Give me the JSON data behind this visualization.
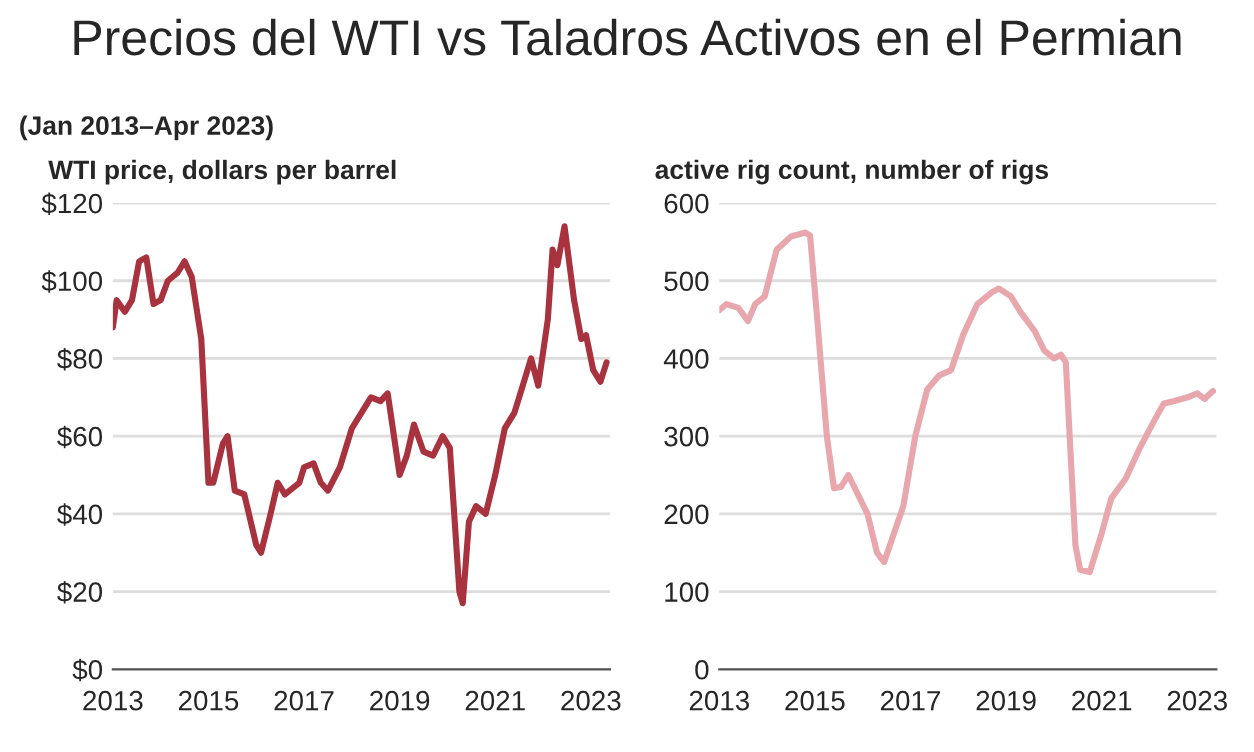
{
  "chart_data": [
    {
      "type": "line",
      "title": "Precios del WTI vs Taladros Activos en el Permian",
      "subtitle": "(Jan 2013–Apr 2023)",
      "ylabel": "WTI price, dollars per barrel",
      "series": [
        {
          "color": "#a8323e",
          "x": [
            2013.0,
            2013.08,
            2013.25,
            2013.4,
            2013.55,
            2013.7,
            2013.85,
            2014.0,
            2014.15,
            2014.35,
            2014.5,
            2014.65,
            2014.85,
            2015.0,
            2015.1,
            2015.3,
            2015.4,
            2015.55,
            2015.75,
            2016.0,
            2016.1,
            2016.3,
            2016.45,
            2016.6,
            2016.9,
            2017.0,
            2017.2,
            2017.35,
            2017.5,
            2017.75,
            2018.0,
            2018.2,
            2018.4,
            2018.6,
            2018.75,
            2019.0,
            2019.15,
            2019.3,
            2019.5,
            2019.7,
            2019.9,
            2020.05,
            2020.25,
            2020.32,
            2020.45,
            2020.6,
            2020.8,
            2021.0,
            2021.2,
            2021.4,
            2021.55,
            2021.75,
            2021.9,
            2022.1,
            2022.2,
            2022.3,
            2022.45,
            2022.65,
            2022.8,
            2022.9,
            2023.05,
            2023.2,
            2023.33
          ],
          "values": [
            88,
            95,
            92,
            95,
            105,
            106,
            94,
            95,
            100,
            102,
            105,
            101,
            85,
            48,
            48,
            58,
            60,
            46,
            45,
            32,
            30,
            40,
            48,
            45,
            48,
            52,
            53,
            48,
            46,
            52,
            62,
            66,
            70,
            69,
            71,
            50,
            55,
            63,
            56,
            55,
            60,
            57,
            20,
            17,
            38,
            42,
            40,
            50,
            62,
            66,
            72,
            80,
            73,
            90,
            108,
            104,
            114,
            95,
            85,
            86,
            77,
            74,
            79
          ]
        }
      ],
      "xlim": [
        2013,
        2023.4
      ],
      "xticks": [
        2013,
        2015,
        2017,
        2019,
        2021,
        2023
      ],
      "ylim": [
        0,
        120
      ],
      "yticks": [
        {
          "value": 0,
          "label": "$0"
        },
        {
          "value": 20,
          "label": "$20"
        },
        {
          "value": 40,
          "label": "$40"
        },
        {
          "value": 60,
          "label": "$60"
        },
        {
          "value": 80,
          "label": "$80"
        },
        {
          "value": 100,
          "label": "$100"
        },
        {
          "value": 120,
          "label": "$120"
        }
      ],
      "grid": "y",
      "line_style": "solid"
    },
    {
      "type": "line",
      "ylabel": "active rig count, number of rigs",
      "series": [
        {
          "color": "#e8a6ad",
          "x": [
            2013.0,
            2013.15,
            2013.4,
            2013.6,
            2013.75,
            2013.95,
            2014.2,
            2014.5,
            2014.8,
            2014.9,
            2015.05,
            2015.25,
            2015.4,
            2015.55,
            2015.7,
            2015.9,
            2016.1,
            2016.3,
            2016.45,
            2016.6,
            2016.85,
            2017.1,
            2017.35,
            2017.6,
            2017.85,
            2018.1,
            2018.4,
            2018.7,
            2018.85,
            2019.1,
            2019.3,
            2019.6,
            2019.8,
            2020.0,
            2020.15,
            2020.25,
            2020.45,
            2020.55,
            2020.75,
            2021.0,
            2021.2,
            2021.5,
            2021.8,
            2022.1,
            2022.3,
            2022.5,
            2022.8,
            2023.0,
            2023.15,
            2023.33
          ],
          "values": [
            462,
            470,
            465,
            448,
            470,
            480,
            540,
            557,
            562,
            558,
            450,
            300,
            233,
            235,
            250,
            225,
            200,
            150,
            138,
            165,
            210,
            300,
            360,
            378,
            385,
            430,
            470,
            485,
            490,
            480,
            460,
            435,
            410,
            400,
            405,
            395,
            160,
            128,
            125,
            175,
            220,
            245,
            285,
            320,
            342,
            345,
            350,
            355,
            348,
            358
          ]
        }
      ],
      "xlim": [
        2013,
        2023.4
      ],
      "xticks": [
        2013,
        2015,
        2017,
        2019,
        2021,
        2023
      ],
      "ylim": [
        0,
        600
      ],
      "yticks": [
        0,
        100,
        200,
        300,
        400,
        500,
        600
      ],
      "grid": "y",
      "line_style": "solid"
    }
  ]
}
